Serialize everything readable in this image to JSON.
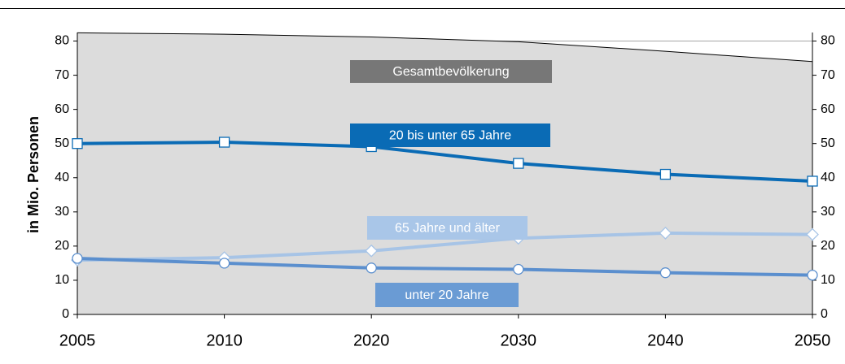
{
  "chart_data": {
    "type": "line",
    "y_label": "in Mio. Personen",
    "categories": [
      "2005",
      "2010",
      "2020",
      "2030",
      "2040",
      "2050"
    ],
    "series": [
      {
        "name": "Gesamtbevölkerung",
        "color": "#000000",
        "fill": "#dcdcdc",
        "label_color": "#777777",
        "marker": "none",
        "values": [
          82.4,
          82.0,
          81.2,
          79.8,
          77.0,
          74.0
        ]
      },
      {
        "name": "20 bis unter 65 Jahre",
        "color": "#0a6bb5",
        "label_color": "#0a6bb5",
        "marker": "square",
        "values": [
          50.0,
          50.4,
          49.1,
          44.2,
          41.0,
          39.0
        ]
      },
      {
        "name": "65 Jahre und älter",
        "color": "#a7c4e6",
        "label_color": "#a9c6e8",
        "marker": "diamond",
        "values": [
          15.9,
          16.6,
          18.6,
          22.3,
          23.8,
          23.4
        ]
      },
      {
        "name": "unter 20 Jahre",
        "color": "#5b8fce",
        "label_color": "#6a9bd4",
        "marker": "circle",
        "values": [
          16.4,
          15.0,
          13.6,
          13.2,
          12.2,
          11.5
        ]
      }
    ],
    "ylim": [
      0,
      82.5
    ],
    "yticks": [
      0,
      10,
      20,
      30,
      40,
      50,
      60,
      70,
      80
    ],
    "grid": true
  }
}
